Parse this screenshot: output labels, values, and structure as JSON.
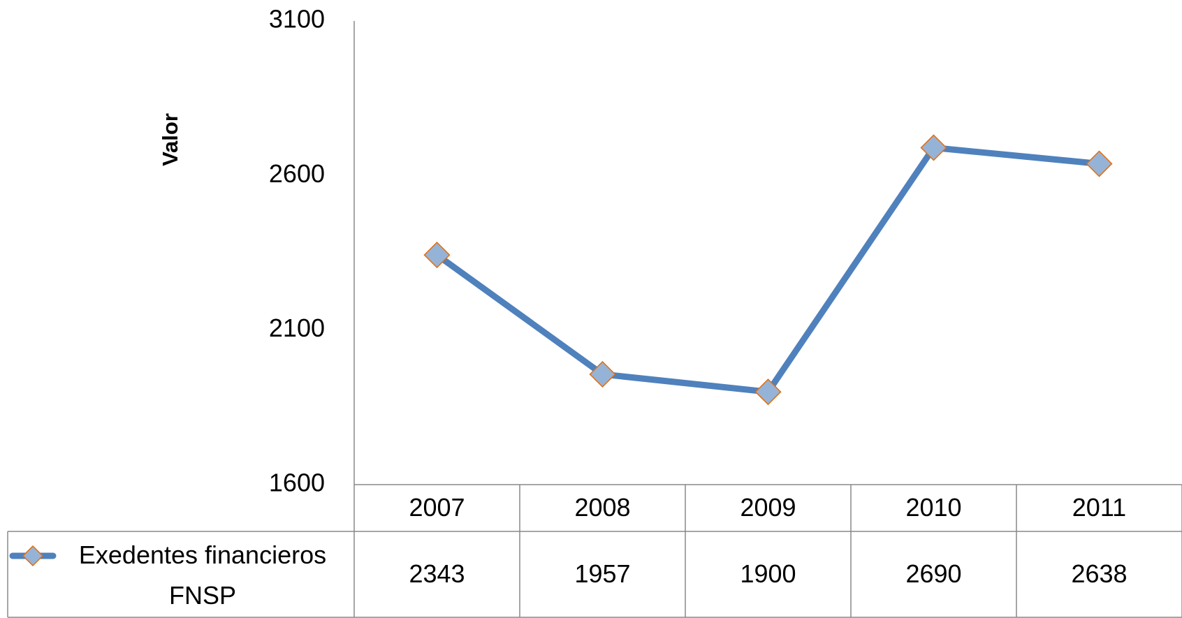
{
  "chart_data": {
    "type": "line",
    "y_label": "Valor",
    "categories": [
      "2007",
      "2008",
      "2009",
      "2010",
      "2011"
    ],
    "series": [
      {
        "name": "Exedentes financieros FNSP",
        "color": "#4f81bd",
        "marker_fill": "#95b3d7",
        "marker_stroke": "#e46c0a",
        "values": [
          2343,
          1957,
          1900,
          2690,
          2638
        ]
      }
    ],
    "ylim": [
      1600,
      3100
    ],
    "yticks": [
      1600,
      2100,
      2600,
      3100
    ],
    "grid": false,
    "data_table": true
  }
}
